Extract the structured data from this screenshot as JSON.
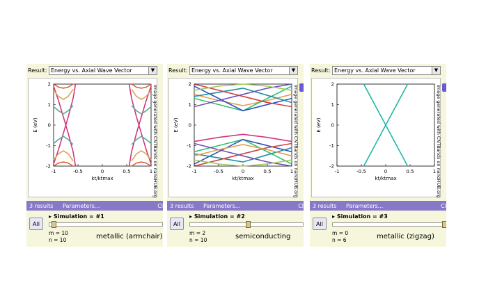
{
  "panels": [
    {
      "result_label": "Result:",
      "result_value": "Energy vs. Axial Wave Vector",
      "results_count": "3 results",
      "parameters_link": "Parameters...",
      "close_hint": "Cl",
      "all_label": "All",
      "simulation_label": "Simulation = #1",
      "m_label": "m = 10",
      "n_label": "n = 10",
      "caption": "metallic (armchair)",
      "watermark": "Image generated with CNTBands on nanoHUB.org",
      "ylabel": "E (eV)",
      "xlabel": "kt/ktmax",
      "slider_fraction": 0.0
    },
    {
      "result_label": "Result:",
      "result_value": "Energy vs. Axial Wave Vector",
      "results_count": "3 results",
      "parameters_link": "Parameters...",
      "close_hint": "Cl",
      "all_label": "All",
      "simulation_label": "Simulation = #2",
      "m_label": "m = 2",
      "n_label": "n = 10",
      "caption": "semiconducting",
      "watermark": "Image generated with CNTBands on nanoHUB.org",
      "ylabel": "E (eV)",
      "xlabel": "kt/ktmax",
      "slider_fraction": 0.5
    },
    {
      "result_label": "Result:",
      "result_value": "Energy vs. Axial Wave Vector",
      "results_count": "3 results",
      "parameters_link": "Parameters...",
      "close_hint": "Cl",
      "all_label": "All",
      "simulation_label": "Simulation = #3",
      "m_label": "m = 0",
      "n_label": "n = 6",
      "caption": "metallic (zigzag)",
      "watermark": "Image generated with CNTBands on nanoHUB.org",
      "ylabel": "E (eV)",
      "xlabel": "kt/ktmax",
      "slider_fraction": 1.0
    }
  ],
  "chart_data": [
    {
      "type": "line",
      "xlim": [
        -1,
        1
      ],
      "ylim": [
        -2,
        2
      ],
      "x_ticks": [
        -1,
        -0.5,
        0,
        0.5,
        1
      ],
      "x_tick_labels": [
        "-1",
        "-0.5",
        "0",
        "0.5",
        "1"
      ],
      "y_ticks": [
        -2,
        -1,
        0,
        1,
        2
      ],
      "y_tick_labels": [
        "-2",
        "-1",
        "0",
        "1",
        "2"
      ],
      "xlabel": "kt/ktmax",
      "ylabel": "E (eV)",
      "series": [
        {
          "color": "#d1367f",
          "x": [
            -1,
            -0.9,
            -0.8,
            -0.7,
            -0.6,
            -0.55
          ],
          "y": [
            -1.9,
            -1.2,
            -0.4,
            0.4,
            1.3,
            2.0
          ]
        },
        {
          "color": "#d1367f",
          "x": [
            -1,
            -0.9,
            -0.8,
            -0.7,
            -0.6,
            -0.55
          ],
          "y": [
            1.9,
            1.2,
            0.4,
            -0.4,
            -1.3,
            -2.0
          ]
        },
        {
          "color": "#d1367f",
          "x": [
            0.55,
            0.6,
            0.7,
            0.8,
            0.9,
            1
          ],
          "y": [
            2.0,
            1.3,
            0.4,
            -0.4,
            -1.2,
            -1.9
          ]
        },
        {
          "color": "#d1367f",
          "x": [
            0.55,
            0.6,
            0.7,
            0.8,
            0.9,
            1
          ],
          "y": [
            -2.0,
            -1.3,
            -0.4,
            0.4,
            1.2,
            1.9
          ]
        },
        {
          "color": "#5aa89a",
          "x": [
            -1,
            -0.9,
            -0.8,
            -0.7,
            -0.6
          ],
          "y": [
            0.9,
            0.7,
            0.55,
            0.7,
            0.95
          ]
        },
        {
          "color": "#5aa89a",
          "x": [
            -1,
            -0.9,
            -0.8,
            -0.7,
            -0.6
          ],
          "y": [
            -0.9,
            -0.7,
            -0.55,
            -0.7,
            -0.95
          ]
        },
        {
          "color": "#5aa89a",
          "x": [
            0.6,
            0.7,
            0.8,
            0.9,
            1
          ],
          "y": [
            0.95,
            0.7,
            0.55,
            0.7,
            0.9
          ]
        },
        {
          "color": "#5aa89a",
          "x": [
            0.6,
            0.7,
            0.8,
            0.9,
            1
          ],
          "y": [
            -0.95,
            -0.7,
            -0.55,
            -0.7,
            -0.9
          ]
        },
        {
          "color": "#e0a050",
          "x": [
            -1,
            -0.9,
            -0.8,
            -0.7,
            -0.6
          ],
          "y": [
            1.7,
            1.4,
            1.25,
            1.4,
            1.75
          ]
        },
        {
          "color": "#e0a050",
          "x": [
            -1,
            -0.9,
            -0.8,
            -0.7,
            -0.6
          ],
          "y": [
            -1.7,
            -1.4,
            -1.25,
            -1.4,
            -1.75
          ]
        },
        {
          "color": "#e0a050",
          "x": [
            0.6,
            0.7,
            0.8,
            0.9,
            1
          ],
          "y": [
            1.75,
            1.4,
            1.25,
            1.4,
            1.7
          ]
        },
        {
          "color": "#e0a050",
          "x": [
            0.6,
            0.7,
            0.8,
            0.9,
            1
          ],
          "y": [
            -1.75,
            -1.4,
            -1.25,
            -1.4,
            -1.7
          ]
        },
        {
          "color": "#e06030",
          "x": [
            -1,
            -0.9,
            -0.8,
            -0.7,
            -0.6
          ],
          "y": [
            2.0,
            1.85,
            1.8,
            1.85,
            2.0
          ]
        },
        {
          "color": "#e06030",
          "x": [
            -1,
            -0.9,
            -0.8,
            -0.7,
            -0.6
          ],
          "y": [
            -2.0,
            -1.85,
            -1.8,
            -1.85,
            -2.0
          ]
        },
        {
          "color": "#e06030",
          "x": [
            0.6,
            0.7,
            0.8,
            0.9,
            1
          ],
          "y": [
            2.0,
            1.85,
            1.8,
            1.85,
            2.0
          ]
        },
        {
          "color": "#e06030",
          "x": [
            0.6,
            0.7,
            0.8,
            0.9,
            1
          ],
          "y": [
            -2.0,
            -1.85,
            -1.8,
            -1.85,
            -2.0
          ]
        }
      ]
    },
    {
      "type": "line",
      "xlim": [
        -1,
        1
      ],
      "ylim": [
        -2,
        2
      ],
      "x_ticks": [
        -1,
        -0.5,
        0,
        0.5,
        1
      ],
      "x_tick_labels": [
        "-1",
        "-0.5",
        "0",
        "0.5",
        "1"
      ],
      "y_ticks": [
        -2,
        -1,
        0,
        1,
        2
      ],
      "y_tick_labels": [
        "-2",
        "-1",
        "0",
        "1",
        "2"
      ],
      "xlabel": "kt/ktmax",
      "ylabel": "E (eV)",
      "series": [
        {
          "color": "#e0a050",
          "x": [
            -1,
            -0.5,
            0,
            0.5,
            1
          ],
          "y": [
            1.5,
            1.2,
            0.95,
            1.2,
            1.5
          ]
        },
        {
          "color": "#d1367f",
          "x": [
            -1,
            -0.5,
            0,
            0.5,
            1
          ],
          "y": [
            -0.8,
            -0.6,
            -0.45,
            -0.6,
            -0.8
          ]
        },
        {
          "color": "#30c070",
          "x": [
            -1,
            -0.5,
            0,
            0.5,
            1
          ],
          "y": [
            1.3,
            1.0,
            0.7,
            1.3,
            1.9
          ]
        },
        {
          "color": "#3050c0",
          "x": [
            -1,
            -0.5,
            0,
            0.5,
            1
          ],
          "y": [
            1.9,
            1.3,
            0.7,
            1.0,
            1.3
          ]
        },
        {
          "color": "#2090a0",
          "x": [
            -1,
            -0.5,
            0,
            0.5,
            1
          ],
          "y": [
            1.4,
            1.6,
            1.8,
            1.45,
            1.1
          ]
        },
        {
          "color": "#d04040",
          "x": [
            -1,
            -0.5,
            0,
            0.5,
            1
          ],
          "y": [
            2.0,
            1.7,
            1.4,
            1.1,
            0.9
          ]
        },
        {
          "color": "#7050b0",
          "x": [
            -1,
            -0.5,
            0,
            0.5,
            1
          ],
          "y": [
            0.9,
            1.2,
            1.5,
            1.8,
            2.0
          ]
        },
        {
          "color": "#a0c860",
          "x": [
            -1,
            -0.5,
            0,
            0.5,
            1
          ],
          "y": [
            1.7,
            1.9,
            2.0,
            1.9,
            1.7
          ]
        },
        {
          "color": "#30c070",
          "x": [
            -1,
            -0.5,
            0,
            0.5,
            1
          ],
          "y": [
            -1.3,
            -1.0,
            -0.7,
            -1.3,
            -1.9
          ]
        },
        {
          "color": "#3050c0",
          "x": [
            -1,
            -0.5,
            0,
            0.5,
            1
          ],
          "y": [
            -1.9,
            -1.3,
            -0.7,
            -1.0,
            -1.3
          ]
        },
        {
          "color": "#2090a0",
          "x": [
            -1,
            -0.5,
            0,
            0.5,
            1
          ],
          "y": [
            -1.4,
            -1.6,
            -1.8,
            -1.45,
            -1.1
          ]
        },
        {
          "color": "#d04040",
          "x": [
            -1,
            -0.5,
            0,
            0.5,
            1
          ],
          "y": [
            -2.0,
            -1.7,
            -1.4,
            -1.1,
            -0.9
          ]
        },
        {
          "color": "#7050b0",
          "x": [
            -1,
            -0.5,
            0,
            0.5,
            1
          ],
          "y": [
            -0.9,
            -1.2,
            -1.5,
            -1.8,
            -2.0
          ]
        },
        {
          "color": "#a0c860",
          "x": [
            -1,
            -0.5,
            0,
            0.5,
            1
          ],
          "y": [
            -1.7,
            -1.9,
            -2.0,
            -1.9,
            -1.7
          ]
        },
        {
          "color": "#e0a050",
          "x": [
            -1,
            -0.5,
            0,
            0.5,
            1
          ],
          "y": [
            -1.5,
            -1.2,
            -0.95,
            -1.2,
            -1.5
          ]
        }
      ]
    },
    {
      "type": "line",
      "xlim": [
        -1,
        1
      ],
      "ylim": [
        -2,
        2
      ],
      "x_ticks": [
        -1,
        -0.5,
        0,
        0.5,
        1
      ],
      "x_tick_labels": [
        "-1",
        "-0.5",
        "0",
        "0.5",
        "1"
      ],
      "y_ticks": [
        -2,
        -1,
        0,
        1,
        2
      ],
      "y_tick_labels": [
        "-2",
        "-1",
        "0",
        "1",
        "2"
      ],
      "xlabel": "kt/ktmax",
      "ylabel": "E (eV)",
      "series": [
        {
          "color": "#1fb8a6",
          "x": [
            -0.45,
            0.45
          ],
          "y": [
            2.0,
            -2.0
          ]
        },
        {
          "color": "#1fb8a6",
          "x": [
            -0.45,
            0.45
          ],
          "y": [
            -2.0,
            2.0
          ]
        }
      ]
    }
  ]
}
